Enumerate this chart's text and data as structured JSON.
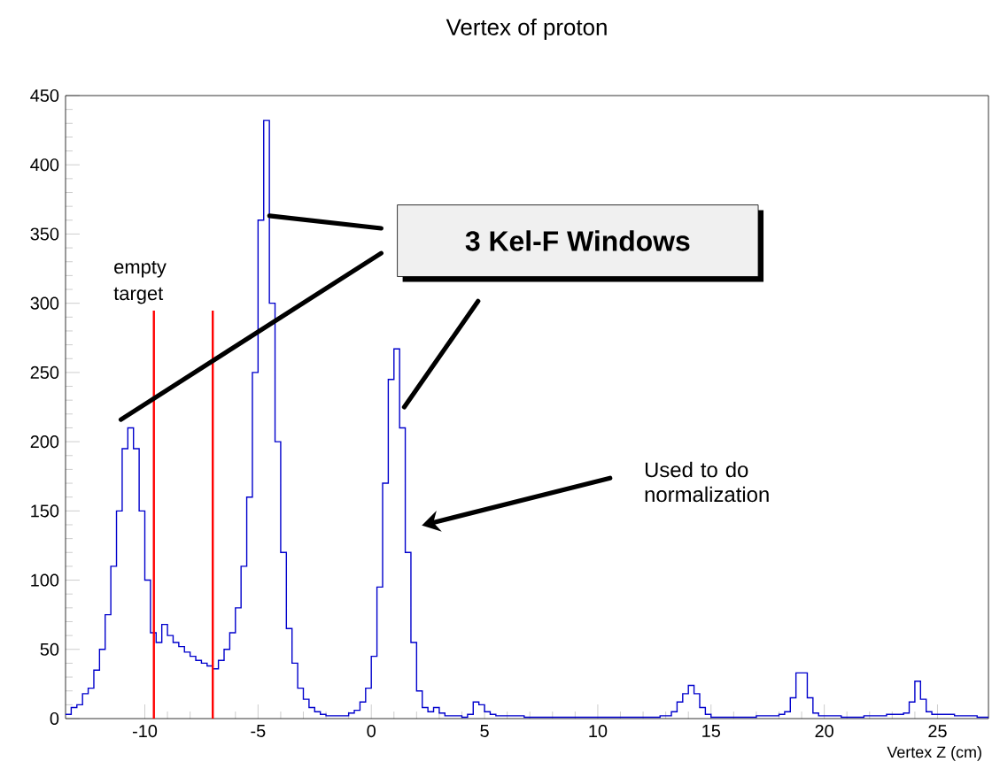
{
  "chart_data": {
    "type": "histogram",
    "title": "Vertex of proton",
    "xlabel": "Vertex Z (cm)",
    "bins": [
      -13.5,
      -13.25,
      -13,
      -12.75,
      -12.5,
      -12.25,
      -12,
      -11.75,
      -11.5,
      -11.25,
      -11,
      -10.75,
      -10.5,
      -10.25,
      -10,
      -9.75,
      -9.5,
      -9.25,
      -9,
      -8.75,
      -8.5,
      -8.25,
      -8,
      -7.75,
      -7.5,
      -7.25,
      -7,
      -6.75,
      -6.5,
      -6.25,
      -6,
      -5.75,
      -5.5,
      -5.25,
      -5,
      -4.75,
      -4.5,
      -4.25,
      -4,
      -3.75,
      -3.5,
      -3.25,
      -3,
      -2.75,
      -2.5,
      -2.25,
      -2,
      -1,
      -0.75,
      -0.5,
      -0.25,
      0,
      0.25,
      0.5,
      0.75,
      1,
      1.25,
      1.5,
      1.75,
      2,
      2.25,
      2.5,
      2.75,
      3,
      3.25,
      3.5,
      3.75,
      4,
      4.25,
      4.5,
      4.75,
      5,
      5.25,
      5.5,
      5.75,
      6.75,
      7.75,
      8.75,
      9.75,
      10.75,
      11.75,
      12.75,
      13.25,
      13.5,
      13.75,
      14,
      14.25,
      14.5,
      14.75,
      15,
      16,
      17,
      18,
      18.25,
      18.5,
      18.75,
      19,
      19.25,
      19.5,
      19.75,
      20.75,
      21.75,
      22.75,
      23.5,
      23.75,
      24,
      24.25,
      24.5,
      24.75,
      25.75,
      26.75,
      27.25
    ],
    "values": [
      3,
      8,
      10,
      18,
      22,
      35,
      50,
      75,
      110,
      150,
      195,
      210,
      195,
      150,
      100,
      62,
      55,
      68,
      60,
      55,
      52,
      48,
      45,
      42,
      40,
      38,
      36,
      42,
      50,
      62,
      80,
      110,
      160,
      250,
      360,
      432,
      300,
      200,
      120,
      65,
      40,
      22,
      14,
      8,
      5,
      3,
      2,
      4,
      6,
      12,
      22,
      45,
      95,
      170,
      245,
      267,
      210,
      120,
      55,
      20,
      8,
      5,
      8,
      4,
      2,
      2,
      2,
      1,
      3,
      12,
      10,
      5,
      3,
      2,
      2,
      1,
      1,
      1,
      1,
      1,
      1,
      2,
      5,
      12,
      18,
      24,
      18,
      8,
      3,
      1,
      1,
      2,
      3,
      5,
      15,
      33,
      33,
      15,
      4,
      2,
      1,
      2,
      3,
      4,
      12,
      27,
      14,
      5,
      3,
      2,
      1
    ],
    "color": "#0000cc",
    "xlim": [
      -13.5,
      27.25
    ],
    "ylim": [
      0,
      450
    ],
    "xticks": [
      -10,
      -5,
      0,
      5,
      10,
      15,
      20,
      25
    ],
    "yticks": [
      0,
      50,
      100,
      150,
      200,
      250,
      300,
      350,
      400,
      450
    ],
    "ref_lines": [
      {
        "axis": "x",
        "value": -9.6,
        "color": "#ff0000"
      },
      {
        "axis": "x",
        "value": -7.0,
        "color": "#ff0000"
      }
    ],
    "annotations": [
      "empty target",
      "3 Kel-F Windows",
      "Used to do normalization"
    ]
  }
}
